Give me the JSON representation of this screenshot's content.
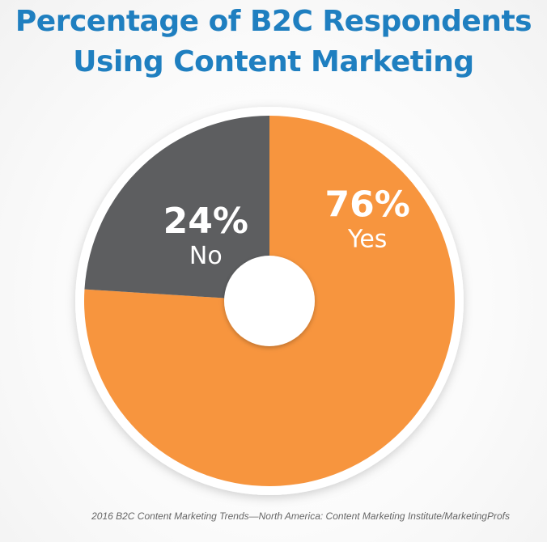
{
  "title_lines": [
    "Percentage of B2C Respondents",
    "Using Content Marketing"
  ],
  "source": "2016 B2C Content Marketing Trends—North America: Content Marketing Institute/MarketingProfs",
  "chart_data": {
    "type": "pie",
    "donut": true,
    "title": "Percentage of B2C Respondents Using Content Marketing",
    "slices": [
      {
        "label": "Yes",
        "value": 76,
        "display": "76%",
        "color": "#f7953e"
      },
      {
        "label": "No",
        "value": 24,
        "display": "24%",
        "color": "#5d5e60"
      }
    ],
    "label_color": "#ffffff",
    "start": "12 o'clock",
    "direction": "clockwise"
  }
}
